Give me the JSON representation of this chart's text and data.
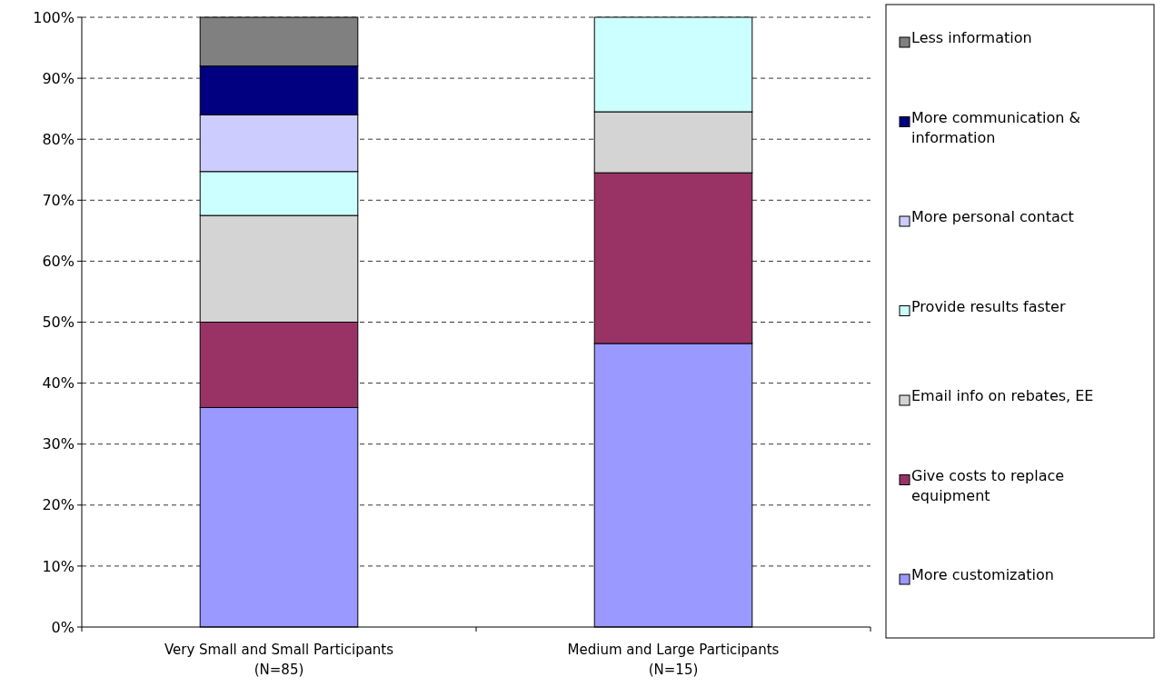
{
  "chart_data": {
    "type": "bar",
    "stacked": true,
    "categories": [
      "Very Small and Small Participants\n(N=85)",
      "Medium and Large Participants\n(N=15)"
    ],
    "series": [
      {
        "name": "More customization",
        "color": "#9999ff",
        "values": [
          36,
          46.5
        ]
      },
      {
        "name": "Give costs to replace equipment",
        "color": "#993366",
        "values": [
          14,
          28
        ]
      },
      {
        "name": "Email info on rebates, EE",
        "color": "#d4d4d4",
        "values": [
          17.5,
          10
        ]
      },
      {
        "name": "Provide results faster",
        "color": "#ccffff",
        "values": [
          7.2,
          15.5
        ]
      },
      {
        "name": "More personal contact",
        "color": "#ccccff",
        "values": [
          9.3,
          0
        ]
      },
      {
        "name": "More communication & information",
        "color": "#000080",
        "values": [
          8,
          0
        ]
      },
      {
        "name": "Less information",
        "color": "#808080",
        "values": [
          8,
          0
        ]
      }
    ],
    "ylim": [
      0,
      100
    ],
    "yticks": [
      {
        "value": 0,
        "label": "0%"
      },
      {
        "value": 10,
        "label": "10%"
      },
      {
        "value": 20,
        "label": "20%"
      },
      {
        "value": 30,
        "label": "30%"
      },
      {
        "value": 40,
        "label": "40%"
      },
      {
        "value": 50,
        "label": "50%"
      },
      {
        "value": 60,
        "label": "60%"
      },
      {
        "value": 70,
        "label": "70%"
      },
      {
        "value": 80,
        "label": "80%"
      },
      {
        "value": 90,
        "label": "90%"
      },
      {
        "value": 100,
        "label": "100%"
      }
    ],
    "grid": "y",
    "legend": "right"
  }
}
